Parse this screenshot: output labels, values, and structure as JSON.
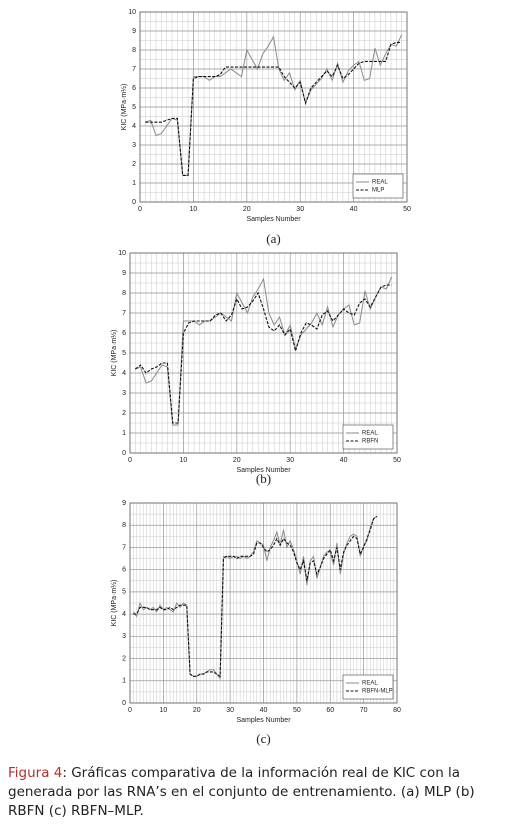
{
  "chart_data": [
    {
      "type": "line",
      "panel_label": "(a)",
      "xlabel": "Samples Number",
      "ylabel": "KIC (MPa·m½)",
      "x": [
        1,
        2,
        3,
        4,
        5,
        6,
        7,
        8,
        9,
        10,
        11,
        12,
        13,
        14,
        15,
        16,
        17,
        18,
        19,
        20,
        21,
        22,
        23,
        24,
        25,
        26,
        27,
        28,
        29,
        30,
        31,
        32,
        33,
        34,
        35,
        36,
        37,
        38,
        39,
        40,
        41,
        42,
        43,
        44,
        45,
        46,
        47,
        48,
        49
      ],
      "series": [
        {
          "name": "REAL",
          "color": "#8a8a8a",
          "style": "solid",
          "values": [
            4.2,
            4.3,
            3.5,
            3.6,
            4.0,
            4.4,
            4.3,
            1.4,
            1.4,
            6.6,
            6.6,
            6.6,
            6.4,
            6.6,
            6.6,
            6.8,
            7.0,
            6.8,
            6.6,
            8.0,
            7.5,
            7.0,
            7.8,
            8.2,
            8.7,
            7.0,
            6.4,
            6.8,
            5.9,
            6.4,
            5.2,
            5.9,
            6.2,
            6.5,
            7.0,
            6.4,
            7.3,
            6.3,
            6.9,
            7.2,
            7.4,
            6.4,
            6.5,
            8.1,
            7.2,
            7.8,
            8.3,
            8.2,
            8.8
          ]
        },
        {
          "name": "MLP",
          "color": "#111111",
          "style": "dashed",
          "values": [
            4.2,
            4.2,
            4.2,
            4.2,
            4.3,
            4.4,
            4.4,
            1.4,
            1.4,
            6.5,
            6.6,
            6.6,
            6.6,
            6.6,
            6.7,
            7.1,
            7.1,
            7.1,
            7.1,
            7.1,
            7.1,
            7.1,
            7.1,
            7.1,
            7.1,
            7.1,
            6.6,
            6.3,
            6.0,
            6.3,
            5.2,
            6.0,
            6.3,
            6.6,
            6.9,
            6.6,
            7.2,
            6.5,
            6.7,
            7.0,
            7.3,
            7.4,
            7.4,
            7.4,
            7.4,
            7.4,
            8.3,
            8.4,
            8.4
          ]
        }
      ],
      "xlim": [
        0,
        50
      ],
      "xticks": [
        0,
        10,
        20,
        30,
        40,
        50
      ],
      "ylim": [
        0,
        10
      ],
      "yticks": [
        0,
        1,
        2,
        3,
        4,
        5,
        6,
        7,
        8,
        9,
        10
      ],
      "grid": true,
      "minor_grid": {
        "x": 1,
        "y": 0.5
      },
      "legend": "lower right"
    },
    {
      "type": "line",
      "panel_label": "(b)",
      "xlabel": "Samples Number",
      "ylabel": "KIC (MPa·m½)",
      "x": [
        1,
        2,
        3,
        4,
        5,
        6,
        7,
        8,
        9,
        10,
        11,
        12,
        13,
        14,
        15,
        16,
        17,
        18,
        19,
        20,
        21,
        22,
        23,
        24,
        25,
        26,
        27,
        28,
        29,
        30,
        31,
        32,
        33,
        34,
        35,
        36,
        37,
        38,
        39,
        40,
        41,
        42,
        43,
        44,
        45,
        46,
        47,
        48,
        49
      ],
      "series": [
        {
          "name": "REAL",
          "color": "#8a8a8a",
          "style": "solid",
          "values": [
            4.2,
            4.3,
            3.5,
            3.6,
            4.0,
            4.4,
            4.3,
            1.4,
            1.4,
            6.6,
            6.6,
            6.6,
            6.4,
            6.6,
            6.6,
            6.8,
            7.0,
            6.8,
            6.6,
            8.0,
            7.5,
            7.0,
            7.8,
            8.2,
            8.7,
            7.0,
            6.4,
            6.8,
            5.9,
            6.4,
            5.2,
            5.9,
            6.2,
            6.5,
            7.0,
            6.4,
            7.3,
            6.3,
            6.9,
            7.2,
            7.4,
            6.4,
            6.5,
            8.1,
            7.2,
            7.8,
            8.3,
            8.2,
            8.8
          ]
        },
        {
          "name": "RBFN",
          "color": "#111111",
          "style": "dashed",
          "values": [
            4.2,
            4.4,
            4.0,
            4.2,
            4.3,
            4.5,
            4.5,
            1.5,
            1.5,
            6.0,
            6.5,
            6.6,
            6.6,
            6.6,
            6.6,
            6.9,
            7.0,
            6.6,
            6.9,
            7.7,
            7.2,
            7.3,
            7.6,
            8.0,
            7.2,
            6.3,
            6.1,
            6.4,
            5.9,
            6.2,
            5.1,
            6.0,
            6.5,
            6.4,
            6.2,
            6.9,
            7.1,
            6.6,
            6.9,
            7.2,
            7.0,
            6.9,
            7.5,
            7.7,
            7.3,
            7.8,
            8.3,
            8.4,
            8.4
          ]
        }
      ],
      "xlim": [
        0,
        50
      ],
      "xticks": [
        0,
        10,
        20,
        30,
        40,
        50
      ],
      "ylim": [
        0,
        10
      ],
      "yticks": [
        0,
        1,
        2,
        3,
        4,
        5,
        6,
        7,
        8,
        9,
        10
      ],
      "grid": true,
      "minor_grid": {
        "x": 1,
        "y": 0.5
      },
      "legend": "lower right"
    },
    {
      "type": "line",
      "panel_label": "(c)",
      "xlabel": "Samples Number",
      "ylabel": "KIC (MPa·m½)",
      "x": [
        1,
        2,
        3,
        4,
        5,
        6,
        7,
        8,
        9,
        10,
        11,
        12,
        13,
        14,
        15,
        16,
        17,
        18,
        19,
        20,
        21,
        22,
        23,
        24,
        25,
        26,
        27,
        28,
        29,
        30,
        31,
        32,
        33,
        34,
        35,
        36,
        37,
        38,
        39,
        40,
        41,
        42,
        43,
        44,
        45,
        46,
        47,
        48,
        49,
        50,
        51,
        52,
        53,
        54,
        55,
        56,
        57,
        58,
        59,
        60,
        61,
        62,
        63,
        64,
        65,
        66,
        67,
        68,
        69,
        70,
        71,
        72,
        73,
        74
      ],
      "series": [
        {
          "name": "REAL",
          "color": "#8a8a8a",
          "style": "solid",
          "values": [
            4.1,
            3.9,
            4.5,
            4.2,
            4.3,
            4.2,
            4.3,
            4.1,
            4.4,
            4.2,
            4.3,
            4.2,
            4.1,
            4.5,
            4.3,
            4.5,
            4.4,
            1.3,
            1.2,
            1.2,
            1.3,
            1.3,
            1.4,
            1.5,
            1.5,
            1.3,
            1.1,
            6.6,
            6.6,
            6.5,
            6.6,
            6.6,
            6.5,
            6.6,
            6.5,
            6.6,
            6.8,
            7.3,
            7.2,
            7.1,
            6.4,
            7.0,
            7.3,
            7.7,
            7.1,
            7.8,
            7.0,
            7.3,
            6.9,
            6.4,
            5.8,
            6.6,
            5.3,
            6.4,
            6.6,
            5.6,
            6.1,
            6.6,
            6.8,
            6.8,
            6.2,
            7.2,
            5.8,
            6.7,
            7.2,
            7.5,
            7.6,
            7.5,
            6.6,
            7.1,
            7.3,
            7.9,
            8.3,
            8.4
          ]
        },
        {
          "name": "RBFN-MLP",
          "color": "#111111",
          "style": "dashed",
          "values": [
            4.0,
            4.0,
            4.3,
            4.3,
            4.3,
            4.2,
            4.2,
            4.2,
            4.3,
            4.2,
            4.2,
            4.3,
            4.2,
            4.3,
            4.4,
            4.4,
            4.4,
            1.3,
            1.2,
            1.2,
            1.3,
            1.3,
            1.4,
            1.4,
            1.4,
            1.3,
            1.2,
            6.5,
            6.6,
            6.6,
            6.6,
            6.5,
            6.6,
            6.6,
            6.6,
            6.6,
            6.7,
            7.2,
            7.2,
            7.0,
            6.8,
            6.9,
            7.1,
            7.4,
            7.1,
            7.4,
            7.2,
            7.1,
            6.8,
            6.3,
            6.0,
            6.4,
            5.5,
            6.3,
            6.4,
            5.8,
            6.1,
            6.5,
            6.7,
            6.9,
            6.4,
            7.0,
            6.0,
            6.8,
            7.1,
            7.3,
            7.5,
            7.4,
            6.7,
            7.0,
            7.4,
            7.8,
            8.3,
            8.4
          ]
        }
      ],
      "xlim": [
        0,
        80
      ],
      "xticks": [
        0,
        10,
        20,
        30,
        40,
        50,
        60,
        70,
        80
      ],
      "ylim": [
        0,
        9
      ],
      "yticks": [
        0,
        1,
        2,
        3,
        4,
        5,
        6,
        7,
        8,
        9
      ],
      "grid": true,
      "minor_grid": {
        "x": 1,
        "y": 0.5
      },
      "legend": "lower right"
    }
  ],
  "caption": {
    "label": "Figura 4",
    "text": ": Gráficas comparativa de la información real de KIC con la generada por las RNA’s  en el conjunto de entrenamiento. (a) MLP (b) RBFN (c) RBFN–MLP."
  }
}
